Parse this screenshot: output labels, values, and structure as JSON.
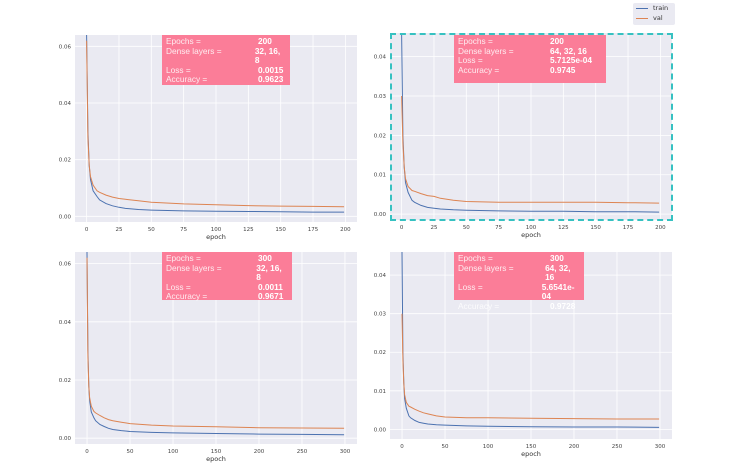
{
  "legend": {
    "train": "train",
    "val": "val"
  },
  "colors": {
    "train": "#4c72b0",
    "val": "#dd8452",
    "bg": "#eaeaf2",
    "info": "#fb7d98",
    "highlight": "#36c1c1"
  },
  "info_labels": {
    "epochs": "Epochs =",
    "dense": "Dense layers =",
    "loss": "Loss =",
    "acc": "Accuracy ="
  },
  "chart_data": [
    {
      "type": "line",
      "xlabel": "epoch",
      "xlim": [
        -9,
        209
      ],
      "ylim": [
        -0.002,
        0.064
      ],
      "xticks": [
        0,
        25,
        50,
        75,
        100,
        125,
        150,
        175,
        200
      ],
      "yticks": [
        "0.00",
        "0.02",
        "0.04",
        "0.06"
      ],
      "info": {
        "epochs": "200",
        "dense": "32, 16, 8",
        "loss": "0.0015",
        "acc": "0.9623"
      },
      "x": [
        0,
        1,
        2,
        3,
        5,
        8,
        10,
        15,
        20,
        25,
        30,
        40,
        50,
        75,
        100,
        125,
        150,
        175,
        199
      ],
      "series": [
        {
          "name": "train",
          "values": [
            0.064,
            0.03,
            0.018,
            0.013,
            0.009,
            0.007,
            0.0058,
            0.0045,
            0.0037,
            0.0032,
            0.0028,
            0.0024,
            0.0022,
            0.0019,
            0.0018,
            0.0017,
            0.0016,
            0.0015,
            0.0015
          ]
        },
        {
          "name": "val",
          "values": [
            0.062,
            0.028,
            0.018,
            0.014,
            0.011,
            0.009,
            0.0085,
            0.0075,
            0.0068,
            0.0063,
            0.006,
            0.0055,
            0.005,
            0.0044,
            0.0041,
            0.0038,
            0.0036,
            0.0035,
            0.0034
          ]
        }
      ]
    },
    {
      "type": "line",
      "xlabel": "epoch",
      "xlim": [
        -9,
        209
      ],
      "ylim": [
        -0.0015,
        0.046
      ],
      "xticks": [
        0,
        25,
        50,
        75,
        100,
        125,
        150,
        175,
        200
      ],
      "yticks": [
        "0.00",
        "0.01",
        "0.02",
        "0.03",
        "0.04"
      ],
      "info": {
        "epochs": "200",
        "dense": "64, 32, 16",
        "loss": "5.7125e-04",
        "acc": "0.9745"
      },
      "x": [
        0,
        1,
        2,
        3,
        5,
        8,
        10,
        15,
        20,
        25,
        30,
        40,
        50,
        75,
        100,
        125,
        150,
        175,
        199
      ],
      "series": [
        {
          "name": "train",
          "values": [
            0.046,
            0.02,
            0.012,
            0.008,
            0.0055,
            0.0035,
            0.003,
            0.0022,
            0.0017,
            0.0015,
            0.0013,
            0.0011,
            0.001,
            0.0008,
            0.0007,
            0.0007,
            0.0006,
            0.0006,
            0.0005
          ]
        },
        {
          "name": "val",
          "values": [
            0.03,
            0.018,
            0.012,
            0.009,
            0.007,
            0.006,
            0.0058,
            0.0052,
            0.0047,
            0.0045,
            0.004,
            0.0035,
            0.0032,
            0.003,
            0.003,
            0.003,
            0.003,
            0.0029,
            0.0028
          ]
        }
      ]
    },
    {
      "type": "line",
      "xlabel": "epoch",
      "xlim": [
        -14,
        314
      ],
      "ylim": [
        -0.002,
        0.064
      ],
      "xticks": [
        0,
        50,
        100,
        150,
        200,
        250,
        300
      ],
      "yticks": [
        "0.00",
        "0.02",
        "0.04",
        "0.06"
      ],
      "info": {
        "epochs": "300",
        "dense": "32, 16, 8",
        "loss": "0.0011",
        "acc": "0.9671"
      },
      "x": [
        0,
        1,
        2,
        3,
        5,
        8,
        10,
        15,
        20,
        25,
        30,
        40,
        50,
        75,
        100,
        150,
        200,
        250,
        299
      ],
      "series": [
        {
          "name": "train",
          "values": [
            0.064,
            0.03,
            0.018,
            0.013,
            0.009,
            0.007,
            0.006,
            0.0047,
            0.004,
            0.0034,
            0.003,
            0.0026,
            0.0023,
            0.002,
            0.0018,
            0.0016,
            0.0014,
            0.0013,
            0.0012
          ]
        },
        {
          "name": "val",
          "values": [
            0.062,
            0.028,
            0.018,
            0.014,
            0.011,
            0.0092,
            0.0087,
            0.0078,
            0.007,
            0.0064,
            0.006,
            0.0055,
            0.005,
            0.0045,
            0.0042,
            0.0039,
            0.0036,
            0.0035,
            0.0034
          ]
        }
      ]
    },
    {
      "type": "line",
      "xlabel": "epoch",
      "xlim": [
        -14,
        314
      ],
      "ylim": [
        -0.0025,
        0.046
      ],
      "xticks": [
        0,
        50,
        100,
        150,
        200,
        250,
        300
      ],
      "yticks": [
        "0.00",
        "0.01",
        "0.02",
        "0.03",
        "0.04"
      ],
      "info": {
        "epochs": "300",
        "dense": "64, 32, 16",
        "loss": "5.6541e-04",
        "acc": "0.9728"
      },
      "x": [
        0,
        1,
        2,
        3,
        5,
        8,
        10,
        15,
        20,
        25,
        30,
        40,
        50,
        75,
        100,
        150,
        200,
        250,
        299
      ],
      "series": [
        {
          "name": "train",
          "values": [
            0.046,
            0.02,
            0.012,
            0.008,
            0.0055,
            0.0035,
            0.003,
            0.0023,
            0.0018,
            0.0016,
            0.0014,
            0.0012,
            0.0011,
            0.0009,
            0.0008,
            0.0007,
            0.0006,
            0.0006,
            0.0005
          ]
        },
        {
          "name": "val",
          "values": [
            0.03,
            0.018,
            0.012,
            0.009,
            0.007,
            0.006,
            0.0058,
            0.0052,
            0.0047,
            0.0043,
            0.004,
            0.0035,
            0.0032,
            0.003,
            0.003,
            0.0029,
            0.0028,
            0.0027,
            0.0027
          ]
        }
      ]
    }
  ]
}
